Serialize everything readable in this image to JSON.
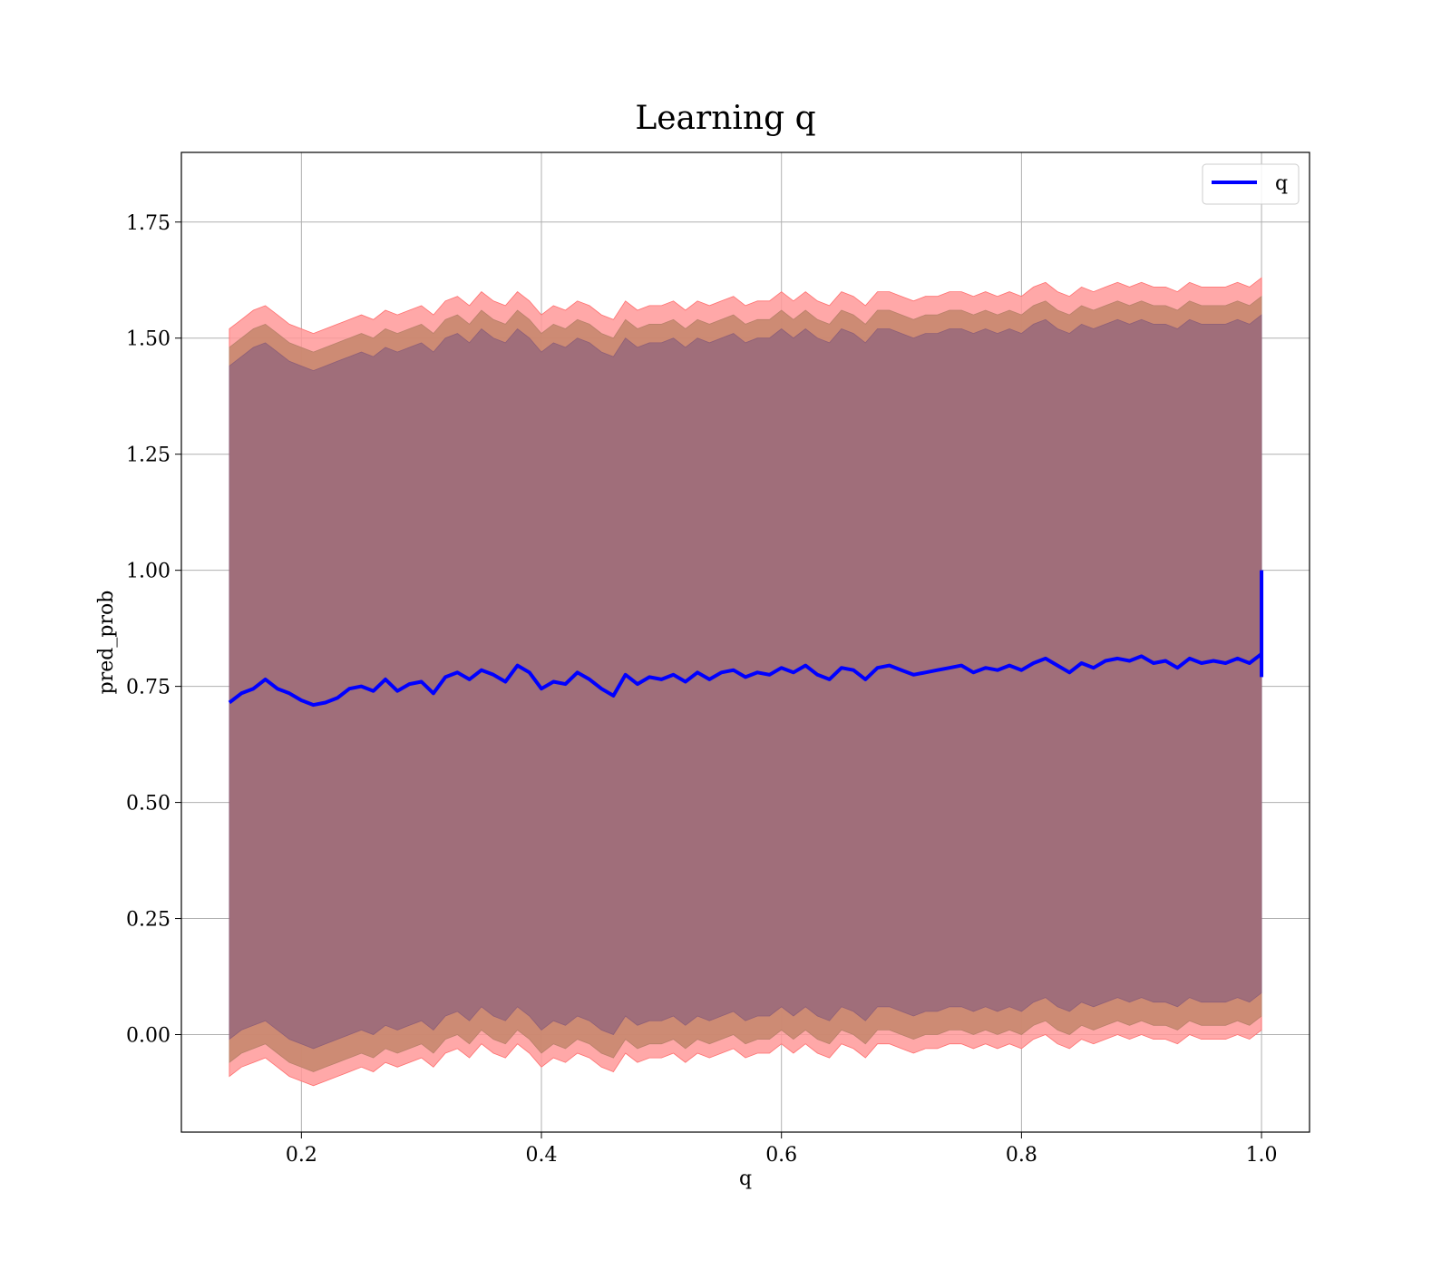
{
  "chart_data": {
    "type": "line",
    "title": "Learning q",
    "xlabel": "q",
    "ylabel": "pred_prob",
    "xlim": [
      0.1,
      1.04
    ],
    "ylim": [
      -0.21,
      1.9
    ],
    "xticks": [
      0.2,
      0.4,
      0.6,
      0.8,
      1.0
    ],
    "xtick_labels": [
      "0.2",
      "0.4",
      "0.6",
      "0.8",
      "1.0"
    ],
    "yticks": [
      0.0,
      0.25,
      0.5,
      0.75,
      1.0,
      1.25,
      1.5,
      1.75
    ],
    "ytick_labels": [
      "0.00",
      "0.25",
      "0.50",
      "0.75",
      "1.00",
      "1.25",
      "1.50",
      "1.75"
    ],
    "grid": true,
    "legend": {
      "placement": "top-right",
      "entries": [
        "q"
      ]
    },
    "line_color": "#0000ff",
    "band_colors": {
      "outer": "#ff9999",
      "middle": "#c8876e",
      "inner": "#a06e7a"
    },
    "series": [
      {
        "name": "q",
        "x": [
          0.14,
          0.15,
          0.16,
          0.17,
          0.18,
          0.19,
          0.2,
          0.21,
          0.22,
          0.23,
          0.24,
          0.25,
          0.26,
          0.27,
          0.28,
          0.29,
          0.3,
          0.31,
          0.32,
          0.33,
          0.34,
          0.35,
          0.36,
          0.37,
          0.38,
          0.39,
          0.4,
          0.41,
          0.42,
          0.43,
          0.44,
          0.45,
          0.46,
          0.47,
          0.48,
          0.49,
          0.5,
          0.51,
          0.52,
          0.53,
          0.54,
          0.55,
          0.56,
          0.57,
          0.58,
          0.59,
          0.6,
          0.61,
          0.62,
          0.63,
          0.64,
          0.65,
          0.66,
          0.67,
          0.68,
          0.69,
          0.7,
          0.71,
          0.72,
          0.73,
          0.74,
          0.75,
          0.76,
          0.77,
          0.78,
          0.79,
          0.8,
          0.81,
          0.82,
          0.83,
          0.84,
          0.85,
          0.86,
          0.87,
          0.88,
          0.89,
          0.9,
          0.91,
          0.92,
          0.93,
          0.94,
          0.95,
          0.96,
          0.97,
          0.98,
          0.99,
          1.0
        ],
        "y": [
          0.715,
          0.735,
          0.745,
          0.765,
          0.745,
          0.735,
          0.72,
          0.71,
          0.715,
          0.725,
          0.745,
          0.75,
          0.74,
          0.765,
          0.74,
          0.755,
          0.76,
          0.735,
          0.77,
          0.78,
          0.765,
          0.785,
          0.775,
          0.76,
          0.795,
          0.78,
          0.745,
          0.76,
          0.755,
          0.78,
          0.765,
          0.745,
          0.73,
          0.775,
          0.755,
          0.77,
          0.765,
          0.775,
          0.76,
          0.78,
          0.765,
          0.78,
          0.785,
          0.77,
          0.78,
          0.775,
          0.79,
          0.78,
          0.795,
          0.775,
          0.765,
          0.79,
          0.785,
          0.765,
          0.79,
          0.795,
          0.785,
          0.775,
          0.78,
          0.785,
          0.79,
          0.795,
          0.78,
          0.79,
          0.785,
          0.795,
          0.785,
          0.8,
          0.81,
          0.795,
          0.78,
          0.8,
          0.79,
          0.805,
          0.81,
          0.805,
          0.815,
          0.8,
          0.805,
          0.79,
          0.81,
          0.8,
          0.805,
          0.8,
          0.81,
          0.8,
          0.82
        ],
        "end_spike": [
          0.77,
          1.0
        ],
        "bands": {
          "outer_upper": [
            1.52,
            1.54,
            1.56,
            1.57,
            1.55,
            1.53,
            1.52,
            1.51,
            1.52,
            1.53,
            1.54,
            1.55,
            1.54,
            1.56,
            1.55,
            1.56,
            1.57,
            1.55,
            1.58,
            1.59,
            1.57,
            1.6,
            1.58,
            1.57,
            1.6,
            1.58,
            1.55,
            1.57,
            1.56,
            1.58,
            1.57,
            1.55,
            1.54,
            1.58,
            1.56,
            1.57,
            1.57,
            1.58,
            1.56,
            1.58,
            1.57,
            1.58,
            1.59,
            1.57,
            1.58,
            1.58,
            1.6,
            1.58,
            1.6,
            1.58,
            1.57,
            1.6,
            1.59,
            1.57,
            1.6,
            1.6,
            1.59,
            1.58,
            1.59,
            1.59,
            1.6,
            1.6,
            1.59,
            1.6,
            1.59,
            1.6,
            1.59,
            1.61,
            1.62,
            1.6,
            1.59,
            1.61,
            1.6,
            1.61,
            1.62,
            1.61,
            1.62,
            1.61,
            1.61,
            1.6,
            1.62,
            1.61,
            1.61,
            1.61,
            1.62,
            1.61,
            1.63
          ],
          "middle_upper": [
            1.48,
            1.5,
            1.52,
            1.53,
            1.51,
            1.49,
            1.48,
            1.47,
            1.48,
            1.49,
            1.5,
            1.51,
            1.5,
            1.52,
            1.51,
            1.52,
            1.53,
            1.51,
            1.54,
            1.55,
            1.53,
            1.56,
            1.54,
            1.53,
            1.56,
            1.54,
            1.51,
            1.53,
            1.52,
            1.54,
            1.53,
            1.51,
            1.5,
            1.54,
            1.52,
            1.53,
            1.53,
            1.54,
            1.52,
            1.54,
            1.53,
            1.54,
            1.55,
            1.53,
            1.54,
            1.54,
            1.56,
            1.54,
            1.56,
            1.54,
            1.53,
            1.56,
            1.55,
            1.53,
            1.56,
            1.56,
            1.55,
            1.54,
            1.55,
            1.55,
            1.56,
            1.56,
            1.55,
            1.56,
            1.55,
            1.56,
            1.55,
            1.57,
            1.58,
            1.56,
            1.55,
            1.57,
            1.56,
            1.57,
            1.58,
            1.57,
            1.58,
            1.57,
            1.57,
            1.56,
            1.58,
            1.57,
            1.57,
            1.57,
            1.58,
            1.57,
            1.59
          ],
          "inner_upper": [
            1.44,
            1.46,
            1.48,
            1.49,
            1.47,
            1.45,
            1.44,
            1.43,
            1.44,
            1.45,
            1.46,
            1.47,
            1.46,
            1.48,
            1.47,
            1.48,
            1.49,
            1.47,
            1.5,
            1.51,
            1.49,
            1.52,
            1.5,
            1.49,
            1.52,
            1.5,
            1.47,
            1.49,
            1.48,
            1.5,
            1.49,
            1.47,
            1.46,
            1.5,
            1.48,
            1.49,
            1.49,
            1.5,
            1.48,
            1.5,
            1.49,
            1.5,
            1.51,
            1.49,
            1.5,
            1.5,
            1.52,
            1.5,
            1.52,
            1.5,
            1.49,
            1.52,
            1.51,
            1.49,
            1.52,
            1.52,
            1.51,
            1.5,
            1.51,
            1.51,
            1.52,
            1.52,
            1.51,
            1.52,
            1.51,
            1.52,
            1.51,
            1.53,
            1.54,
            1.52,
            1.51,
            1.53,
            1.52,
            1.53,
            1.54,
            1.53,
            1.54,
            1.53,
            1.53,
            1.52,
            1.54,
            1.53,
            1.53,
            1.53,
            1.54,
            1.53,
            1.55
          ],
          "inner_lower": [
            -0.01,
            0.01,
            0.02,
            0.03,
            0.01,
            -0.01,
            -0.02,
            -0.03,
            -0.02,
            -0.01,
            0.0,
            0.01,
            0.0,
            0.02,
            0.01,
            0.02,
            0.03,
            0.01,
            0.04,
            0.05,
            0.03,
            0.06,
            0.04,
            0.03,
            0.06,
            0.04,
            0.01,
            0.03,
            0.02,
            0.04,
            0.03,
            0.01,
            0.0,
            0.04,
            0.02,
            0.03,
            0.03,
            0.04,
            0.02,
            0.04,
            0.03,
            0.04,
            0.05,
            0.03,
            0.04,
            0.04,
            0.06,
            0.04,
            0.06,
            0.04,
            0.03,
            0.06,
            0.05,
            0.03,
            0.06,
            0.06,
            0.05,
            0.04,
            0.05,
            0.05,
            0.06,
            0.06,
            0.05,
            0.06,
            0.05,
            0.06,
            0.05,
            0.07,
            0.08,
            0.06,
            0.05,
            0.07,
            0.06,
            0.07,
            0.08,
            0.07,
            0.08,
            0.07,
            0.07,
            0.06,
            0.08,
            0.07,
            0.07,
            0.07,
            0.08,
            0.07,
            0.09
          ],
          "middle_lower": [
            -0.06,
            -0.04,
            -0.03,
            -0.02,
            -0.04,
            -0.06,
            -0.07,
            -0.08,
            -0.07,
            -0.06,
            -0.05,
            -0.04,
            -0.05,
            -0.03,
            -0.04,
            -0.03,
            -0.02,
            -0.04,
            -0.01,
            0.0,
            -0.02,
            0.01,
            -0.01,
            -0.02,
            0.01,
            -0.01,
            -0.04,
            -0.02,
            -0.03,
            -0.01,
            -0.02,
            -0.04,
            -0.05,
            -0.01,
            -0.03,
            -0.02,
            -0.02,
            -0.01,
            -0.03,
            -0.01,
            -0.02,
            -0.01,
            0.0,
            -0.02,
            -0.01,
            -0.01,
            0.01,
            -0.01,
            0.01,
            -0.01,
            -0.02,
            0.01,
            0.0,
            -0.02,
            0.01,
            0.01,
            0.0,
            -0.01,
            0.0,
            0.0,
            0.01,
            0.01,
            0.0,
            0.01,
            0.0,
            0.01,
            0.0,
            0.02,
            0.03,
            0.01,
            0.0,
            0.02,
            0.01,
            0.02,
            0.03,
            0.02,
            0.03,
            0.02,
            0.02,
            0.01,
            0.03,
            0.02,
            0.02,
            0.02,
            0.03,
            0.02,
            0.04
          ],
          "outer_lower": [
            -0.09,
            -0.07,
            -0.06,
            -0.05,
            -0.07,
            -0.09,
            -0.1,
            -0.11,
            -0.1,
            -0.09,
            -0.08,
            -0.07,
            -0.08,
            -0.06,
            -0.07,
            -0.06,
            -0.05,
            -0.07,
            -0.04,
            -0.03,
            -0.05,
            -0.02,
            -0.04,
            -0.05,
            -0.02,
            -0.04,
            -0.07,
            -0.05,
            -0.06,
            -0.04,
            -0.05,
            -0.07,
            -0.08,
            -0.04,
            -0.06,
            -0.05,
            -0.05,
            -0.04,
            -0.06,
            -0.04,
            -0.05,
            -0.04,
            -0.03,
            -0.05,
            -0.04,
            -0.04,
            -0.02,
            -0.04,
            -0.02,
            -0.04,
            -0.05,
            -0.02,
            -0.03,
            -0.05,
            -0.02,
            -0.02,
            -0.03,
            -0.04,
            -0.03,
            -0.03,
            -0.02,
            -0.02,
            -0.03,
            -0.02,
            -0.03,
            -0.02,
            -0.03,
            -0.01,
            0.0,
            -0.02,
            -0.03,
            -0.01,
            -0.02,
            -0.01,
            0.0,
            -0.01,
            0.0,
            -0.01,
            -0.01,
            -0.02,
            0.0,
            -0.01,
            -0.01,
            -0.01,
            0.0,
            -0.01,
            0.01
          ]
        }
      }
    ]
  }
}
